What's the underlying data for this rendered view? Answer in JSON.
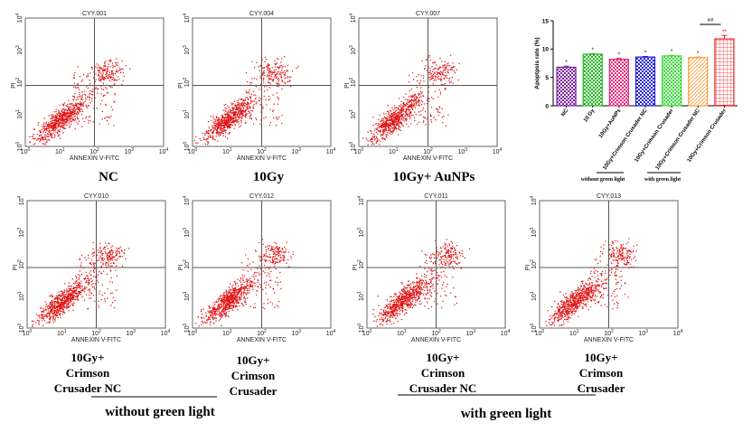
{
  "chart_data": [
    {
      "type": "scatter",
      "plots": [
        {
          "title": "CYY.001",
          "label": [
            "NC"
          ]
        },
        {
          "title": "CYY.004",
          "label": [
            "10Gy"
          ]
        },
        {
          "title": "CYY.007",
          "label": [
            "10Gy+ AuNPs"
          ]
        },
        {
          "title": "CYY.010",
          "label": [
            "10Gy+",
            "Crimson",
            "Crusader NC"
          ]
        },
        {
          "title": "CYY.012",
          "label": [
            "10Gy+",
            "Crimson",
            "Crusader"
          ]
        },
        {
          "title": "CYY.011",
          "label": [
            "10Gy+",
            "Crimson",
            "Crusader NC"
          ]
        },
        {
          "title": "CYY.013",
          "label": [
            "10Gy+",
            "Crimson",
            "Crusader"
          ]
        }
      ],
      "xlabel": "ANNEXIN V-FITC",
      "ylabel": "PI",
      "scale": "log",
      "xlim": [
        1,
        10000
      ],
      "ylim": [
        1,
        10000
      ],
      "tick_labels": [
        "10^0",
        "10^1",
        "10^2",
        "10^3",
        "10^4"
      ],
      "quadrant_gate": {
        "x": 100,
        "y": 80
      },
      "point_color": "#e01010"
    },
    {
      "type": "bar",
      "ylabel": "Apoptpsis rate (%)",
      "ylim": [
        0,
        15
      ],
      "yticks": [
        0,
        5,
        10,
        15
      ],
      "categories": [
        "NC",
        "10 Gy",
        "10Gy+AuNPs",
        "10Gy+Crimson Crusader NC",
        "10Gy+Crimson Crusader",
        "10Gy+Crimson Crusader NC",
        "10Gy+Crimson Crusader"
      ],
      "values": [
        6.8,
        9.1,
        8.2,
        8.6,
        8.8,
        8.5,
        11.8
      ],
      "errors": [
        0.2,
        0.1,
        0.2,
        0.1,
        0.1,
        0.1,
        0.6
      ],
      "colors": [
        "#7b1fa2",
        "#22b822",
        "#e8287a",
        "#2020d8",
        "#33dd33",
        "#ff9a33",
        "#ee2020"
      ],
      "annotations": [
        "*",
        "*",
        "*",
        "*",
        "*",
        "*",
        "**"
      ],
      "comparison": {
        "between": [
          5,
          6
        ],
        "label": "##"
      },
      "groups": [
        {
          "label": "without green light"
        },
        {
          "label": "with green light"
        }
      ]
    }
  ],
  "figure": {
    "group_labels": [
      "without green light",
      "with green light"
    ]
  }
}
